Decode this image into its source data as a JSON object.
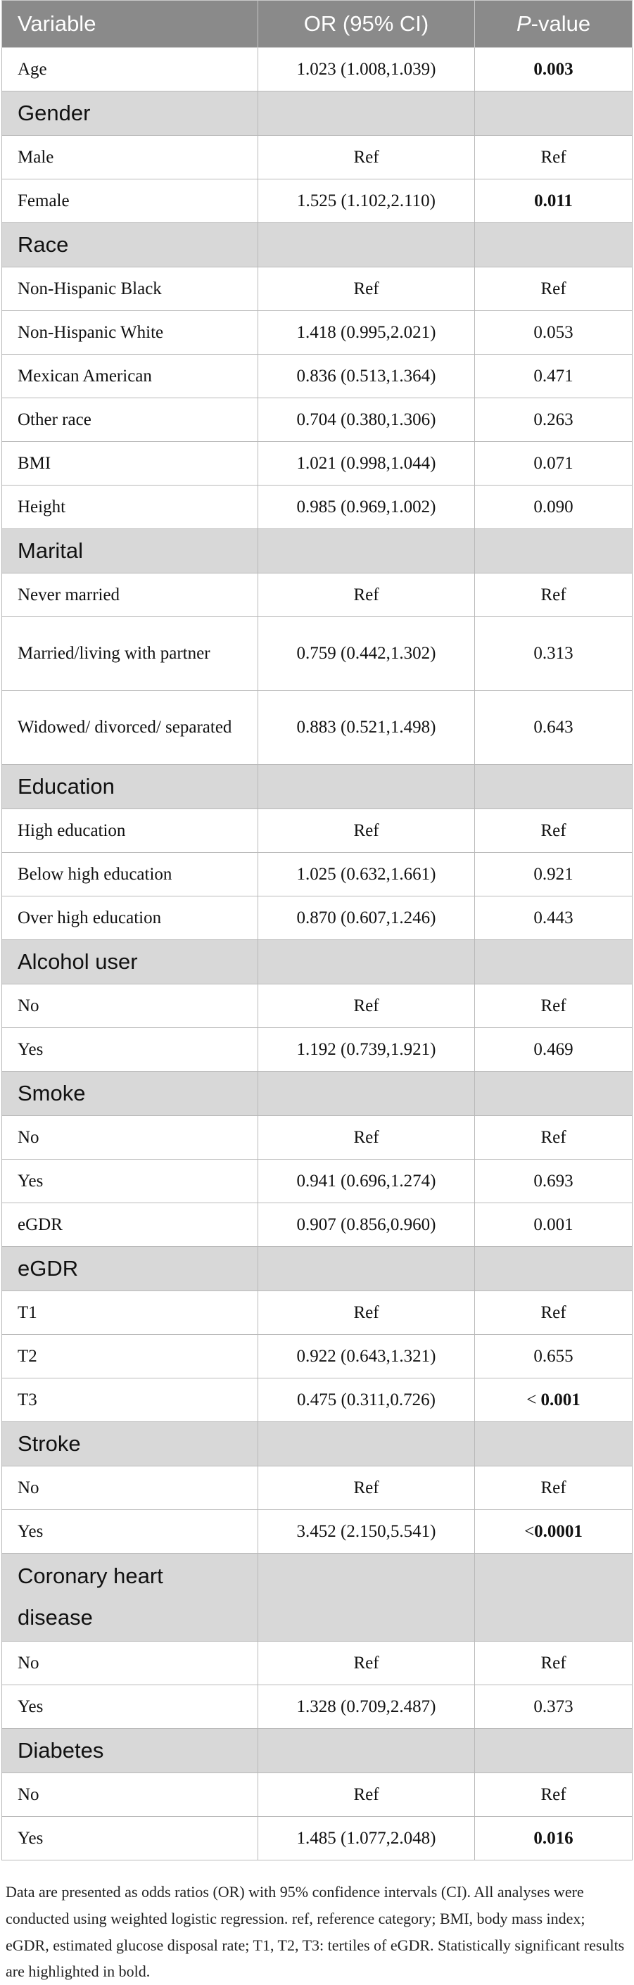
{
  "table": {
    "headers": {
      "variable": "Variable",
      "or": "OR (95% CI)",
      "p_italic": "P",
      "p_rest": "-value"
    },
    "rows": [
      {
        "type": "row",
        "label": "Age",
        "or": "1.023 (1.008,1.039)",
        "p_prefix": "",
        "p": "0.003",
        "bold": true
      },
      {
        "type": "group",
        "label": "Gender"
      },
      {
        "type": "row",
        "label": "Male",
        "or": "Ref",
        "p_prefix": "",
        "p": "Ref",
        "or_center": true
      },
      {
        "type": "row",
        "label": "Female",
        "or": "1.525 (1.102,2.110)",
        "p_prefix": "",
        "p": "0.011",
        "bold": true
      },
      {
        "type": "group",
        "label": "Race"
      },
      {
        "type": "row",
        "label": "Non-Hispanic Black",
        "or": "Ref",
        "p_prefix": "",
        "p": "Ref",
        "or_center": true
      },
      {
        "type": "row",
        "label": "Non-Hispanic White",
        "or": "1.418 (0.995,2.021)",
        "p_prefix": "",
        "p": "0.053"
      },
      {
        "type": "row",
        "label": "Mexican American",
        "or": "0.836 (0.513,1.364)",
        "p_prefix": "",
        "p": "0.471"
      },
      {
        "type": "row",
        "label": "Other race",
        "or": "0.704 (0.380,1.306)",
        "p_prefix": "",
        "p": "0.263"
      },
      {
        "type": "row",
        "label": "BMI",
        "or": "1.021 (0.998,1.044)",
        "p_prefix": "",
        "p": "0.071"
      },
      {
        "type": "row",
        "label": "Height",
        "or": "0.985 (0.969,1.002)",
        "p_prefix": "",
        "p": "0.090"
      },
      {
        "type": "group",
        "label": "Marital"
      },
      {
        "type": "row",
        "label": "Never married",
        "or": "Ref",
        "p_prefix": "",
        "p": "Ref",
        "or_center": true
      },
      {
        "type": "row",
        "label": "Married/living with partner",
        "or": "0.759 (0.442,1.302)",
        "p_prefix": "",
        "p": "0.313",
        "tall": true
      },
      {
        "type": "row",
        "label": "Widowed/ divorced/ separated",
        "or": "0.883 (0.521,1.498)",
        "p_prefix": "",
        "p": "0.643",
        "tall": true
      },
      {
        "type": "group",
        "label": "Education"
      },
      {
        "type": "row",
        "label": "High education",
        "or": "Ref",
        "p_prefix": "",
        "p": "Ref",
        "or_center": true
      },
      {
        "type": "row",
        "label": "Below high education",
        "or": "1.025 (0.632,1.661)",
        "p_prefix": "",
        "p": "0.921"
      },
      {
        "type": "row",
        "label": "Over high education",
        "or": "0.870 (0.607,1.246)",
        "p_prefix": "",
        "p": "0.443"
      },
      {
        "type": "group",
        "label": "Alcohol user"
      },
      {
        "type": "row",
        "label": "No",
        "or": "Ref",
        "p_prefix": "",
        "p": "Ref",
        "or_center": true
      },
      {
        "type": "row",
        "label": "Yes",
        "or": "1.192 (0.739,1.921)",
        "p_prefix": "",
        "p": "0.469"
      },
      {
        "type": "group",
        "label": "Smoke"
      },
      {
        "type": "row",
        "label": "No",
        "or": "Ref",
        "p_prefix": "",
        "p": "Ref",
        "or_center": true
      },
      {
        "type": "row",
        "label": "Yes",
        "or": "0.941 (0.696,1.274)",
        "p_prefix": "",
        "p": "0.693"
      },
      {
        "type": "row",
        "label": "eGDR",
        "or": "0.907 (0.856,0.960)",
        "p_prefix": "",
        "p": "0.001"
      },
      {
        "type": "group",
        "label": "eGDR"
      },
      {
        "type": "row",
        "label": "T1",
        "or": "Ref",
        "p_prefix": "",
        "p": "Ref",
        "or_center": true
      },
      {
        "type": "row",
        "label": "T2",
        "or": "0.922 (0.643,1.321)",
        "p_prefix": "",
        "p": "0.655"
      },
      {
        "type": "row",
        "label": "T3",
        "or": "0.475 (0.311,0.726)",
        "p_prefix": "< ",
        "p": "0.001",
        "bold": true
      },
      {
        "type": "group",
        "label": "Stroke"
      },
      {
        "type": "row",
        "label": "No",
        "or": "Ref",
        "p_prefix": "",
        "p": "Ref",
        "or_center": true
      },
      {
        "type": "row",
        "label": "Yes",
        "or": "3.452 (2.150,5.541)",
        "p_prefix": "<",
        "p": "0.0001",
        "bold": true
      },
      {
        "type": "group",
        "label": "Coronary heart disease",
        "tall": true
      },
      {
        "type": "row",
        "label": "No",
        "or": "Ref",
        "p_prefix": "",
        "p": "Ref",
        "or_center": true
      },
      {
        "type": "row",
        "label": "Yes",
        "or": "1.328 (0.709,2.487)",
        "p_prefix": "",
        "p": "0.373"
      },
      {
        "type": "group",
        "label": "Diabetes"
      },
      {
        "type": "row",
        "label": "No",
        "or": "Ref",
        "p_prefix": "",
        "p": "Ref",
        "or_center": true
      },
      {
        "type": "row",
        "label": "Yes",
        "or": "1.485 (1.077,2.048)",
        "p_prefix": "",
        "p": "0.016",
        "bold": true
      }
    ]
  },
  "footnote": "Data are presented as odds ratios (OR) with 95% confidence intervals (CI). All analyses were conducted using weighted logistic regression. ref, reference category; BMI, body mass index; eGDR, estimated glucose disposal rate; T1, T2, T3: tertiles of eGDR. Statistically significant results are highlighted in bold."
}
